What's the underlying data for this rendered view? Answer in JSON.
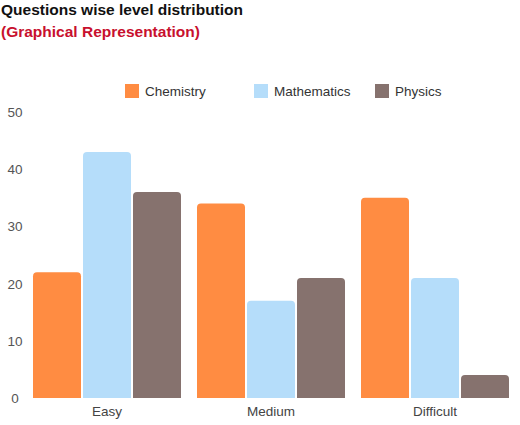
{
  "chart_data": {
    "type": "bar",
    "title": "Questions wise level distribution",
    "subtitle": "(Graphical Representation)",
    "categories": [
      "Easy",
      "Medium",
      "Difficult"
    ],
    "series": [
      {
        "name": "Chemistry",
        "color": "#ff8c42",
        "values": [
          22,
          34,
          35
        ]
      },
      {
        "name": "Mathematics",
        "color": "#b5ddfa",
        "values": [
          43,
          17,
          21
        ]
      },
      {
        "name": "Physics",
        "color": "#86726e",
        "values": [
          36,
          21,
          4
        ]
      }
    ],
    "ylim": [
      0,
      50
    ],
    "yticks": [
      0,
      10,
      20,
      30,
      40,
      50
    ],
    "grid": false,
    "legend": "top"
  }
}
